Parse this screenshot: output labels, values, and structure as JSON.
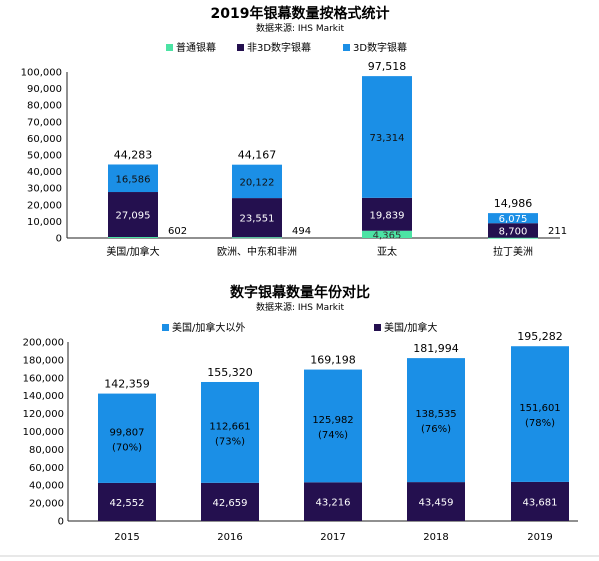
{
  "colors": {
    "conventional": "#4ce3a4",
    "non3d": "#24104f",
    "threeD": "#1b8fe6",
    "outside": "#1b8fe6",
    "us_canada": "#24104f"
  },
  "chart_data": [
    {
      "type": "bar",
      "stacked": true,
      "title": "2019年银幕数量按格式统计",
      "subtitle": "数据来源: IHS Markit",
      "categories": [
        "美国/加拿大",
        "欧洲、中东和非洲",
        "亚太",
        "拉丁美洲"
      ],
      "series": [
        {
          "name": "普通银幕",
          "values": [
            602,
            494,
            4365,
            211
          ],
          "labels": [
            "602",
            "494",
            "4,365",
            "211"
          ]
        },
        {
          "name": "非3D数字银幕",
          "values": [
            27095,
            23551,
            19839,
            8700
          ],
          "labels": [
            "27,095",
            "23,551",
            "19,839",
            "8,700"
          ]
        },
        {
          "name": "3D数字银幕",
          "values": [
            16586,
            20122,
            73314,
            6075
          ],
          "labels": [
            "16,586",
            "20,122",
            "73,314",
            "6,075"
          ]
        }
      ],
      "totals": [
        "44,283",
        "44,167",
        "97,518",
        "14,986"
      ],
      "ylim": [
        0,
        100000
      ],
      "yticks": [
        "0",
        "10,000",
        "20,000",
        "30,000",
        "40,000",
        "50,000",
        "60,000",
        "70,000",
        "80,000",
        "90,000",
        "100,000"
      ],
      "legend": "top"
    },
    {
      "type": "bar",
      "stacked": true,
      "title": "数字银幕数量年份对比",
      "subtitle": "数据来源: IHS Markit",
      "categories": [
        "2015",
        "2016",
        "2017",
        "2018",
        "2019"
      ],
      "series": [
        {
          "name": "美国/加拿大",
          "values": [
            42552,
            42659,
            43216,
            43459,
            43681
          ],
          "labels": [
            "42,552",
            "42,659",
            "43,216",
            "43,459",
            "43,681"
          ]
        },
        {
          "name": "美国/加拿大以外",
          "values": [
            99807,
            112661,
            125982,
            138535,
            151601
          ],
          "labels": [
            "99,807",
            "112,661",
            "125,982",
            "138,535",
            "151,601"
          ],
          "pct": [
            "(70%)",
            "(73%)",
            "(74%)",
            "(76%)",
            "(78%)"
          ]
        }
      ],
      "totals": [
        "142,359",
        "155,320",
        "169,198",
        "181,994",
        "195,282"
      ],
      "ylim": [
        0,
        200000
      ],
      "yticks": [
        "0",
        "20,000",
        "40,000",
        "60,000",
        "80,000",
        "100,000",
        "120,000",
        "140,000",
        "160,000",
        "180,000",
        "200,000"
      ],
      "legend": "top"
    }
  ]
}
